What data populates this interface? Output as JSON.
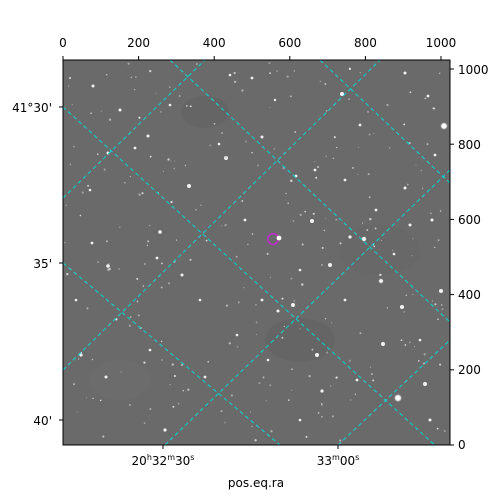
{
  "figure": {
    "xlabel": "pos.eq.ra",
    "top_ticks": [
      "0",
      "200",
      "400",
      "600",
      "800",
      "1000"
    ],
    "right_ticks": [
      "0",
      "200",
      "400",
      "600",
      "800",
      "1000"
    ],
    "left_ticks": [
      "41°30'",
      "35'",
      "40'"
    ],
    "bottom_ticks": [
      {
        "main": "20",
        "h": "h",
        "mid": "32",
        "m": "m",
        "end": "30",
        "s": "s"
      },
      {
        "main": "33",
        "m": "m",
        "end": "00",
        "s": "s"
      }
    ],
    "colors": {
      "grid": "#00d8d8",
      "marker": "#c02ccf",
      "sky": "#6a6a6a"
    },
    "pixel_range": {
      "x": [
        0,
        1024
      ],
      "y": [
        0,
        1024
      ]
    }
  }
}
